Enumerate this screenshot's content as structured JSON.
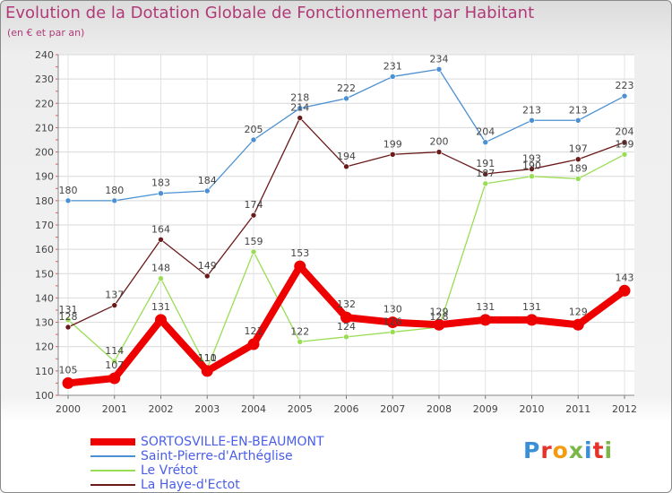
{
  "title": "Evolution de la Dotation Globale de Fonctionnement par Habitant",
  "subtitle": "(en € et par an)",
  "logo": {
    "text": "Proxiti",
    "colors": [
      "#3a8fd6",
      "#e6332a",
      "#f39c12",
      "#7ab648",
      "#3a8fd6",
      "#e6332a",
      "#7ab648"
    ]
  },
  "chart_data": {
    "type": "line",
    "title": "Evolution de la Dotation Globale de Fonctionnement par Habitant",
    "subtitle": "(en € et par an)",
    "x": [
      "2000",
      "2001",
      "2002",
      "2003",
      "2004",
      "2005",
      "2006",
      "2007",
      "2008",
      "2009",
      "2010",
      "2011",
      "2012"
    ],
    "yticks": [
      100,
      110,
      120,
      130,
      140,
      150,
      160,
      170,
      180,
      190,
      200,
      210,
      220,
      230,
      240
    ],
    "ylim": [
      100,
      240
    ],
    "grid": true,
    "legend_position": "bottom-left",
    "series": [
      {
        "name": "SORTOSVILLE-EN-BEAUMONT",
        "color": "#ee0000",
        "highlight": true,
        "values": [
          105,
          107,
          131,
          110,
          121,
          153,
          132,
          130,
          129,
          131,
          131,
          129,
          143
        ],
        "labels": [
          "105",
          "107",
          "131",
          "110",
          "121",
          "153",
          "132",
          "130",
          "129",
          "131",
          "131",
          "129",
          "143"
        ]
      },
      {
        "name": "Saint-Pierre-d'Arthéglise",
        "color": "#4a90d2",
        "highlight": false,
        "values": [
          180,
          180,
          183,
          184,
          205,
          218,
          222,
          231,
          234,
          204,
          213,
          213,
          223
        ],
        "labels": [
          "180",
          "180",
          "183",
          "184",
          "205",
          "218",
          "222",
          "231",
          "234",
          "204",
          "213",
          "213",
          "223"
        ]
      },
      {
        "name": "Le Vrétot",
        "color": "#99dd55",
        "highlight": false,
        "values": [
          131,
          114,
          148,
          111,
          159,
          122,
          124,
          126,
          128,
          187,
          190,
          189,
          199
        ],
        "labels": [
          "131",
          "114",
          "148",
          "111",
          "159",
          "122",
          "124",
          "126",
          "128",
          "187",
          "190",
          "189",
          "199"
        ]
      },
      {
        "name": "La Haye-d'Ectot",
        "color": "#6b1a1a",
        "highlight": false,
        "values": [
          128,
          137,
          164,
          149,
          174,
          214,
          194,
          199,
          200,
          191,
          193,
          197,
          204
        ],
        "labels": [
          "128",
          "137",
          "164",
          "149",
          "174",
          "214",
          "194",
          "199",
          "200",
          "191",
          "193",
          "197",
          "204"
        ]
      }
    ]
  }
}
